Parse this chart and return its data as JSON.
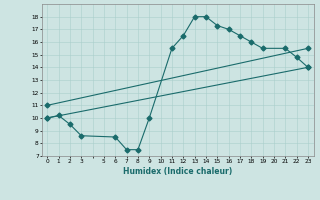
{
  "title": "",
  "xlabel": "Humidex (Indice chaleur)",
  "xlim": [
    -0.5,
    23.5
  ],
  "ylim": [
    7,
    19
  ],
  "yticks": [
    7,
    8,
    9,
    10,
    11,
    12,
    13,
    14,
    15,
    16,
    17,
    18
  ],
  "xticks": [
    0,
    1,
    2,
    3,
    5,
    6,
    7,
    8,
    9,
    10,
    11,
    12,
    13,
    14,
    15,
    16,
    17,
    18,
    19,
    20,
    21,
    22,
    23
  ],
  "bg_color": "#cde4e2",
  "grid_color": "#aacfcc",
  "line_color": "#1a6b6b",
  "curve1_x": [
    0,
    1,
    2,
    3,
    6,
    7,
    8,
    9,
    11,
    12,
    13,
    14,
    15,
    16,
    17,
    18,
    19,
    21,
    22,
    23
  ],
  "curve1_y": [
    10.0,
    10.2,
    9.5,
    8.6,
    8.5,
    7.5,
    7.5,
    10.0,
    15.5,
    16.5,
    18.0,
    18.0,
    17.3,
    17.0,
    16.5,
    16.0,
    15.5,
    15.5,
    14.8,
    14.0
  ],
  "curve2_x": [
    0,
    23
  ],
  "curve2_y": [
    10.0,
    14.0
  ],
  "curve3_x": [
    0,
    23
  ],
  "curve3_y": [
    11.0,
    15.5
  ],
  "markersize": 2.5,
  "linewidth": 0.8
}
